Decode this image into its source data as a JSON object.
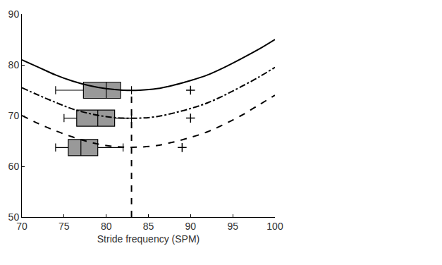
{
  "chart_data": {
    "type": "line",
    "x_label": "Stride frequency (SPM)",
    "x": [
      70,
      72,
      74,
      76,
      78,
      80,
      82,
      84,
      86,
      88,
      90,
      92,
      94,
      96,
      98,
      100
    ],
    "series": [
      {
        "color": "#000000",
        "line_style": "solid",
        "values": [
          81,
          79.5,
          78,
          76.8,
          75.9,
          75.3,
          75,
          75,
          75.3,
          76,
          76.9,
          78,
          79.5,
          81.2,
          83,
          85
        ]
      },
      {
        "color": "#000000",
        "line_style": "dashdot",
        "values": [
          75.5,
          74,
          72.6,
          71.3,
          70.4,
          69.8,
          69.5,
          69.5,
          69.8,
          70.5,
          71.4,
          72.5,
          74,
          75.7,
          77.5,
          79.5
        ]
      },
      {
        "color": "#000000",
        "line_style": "dashed",
        "values": [
          70,
          68.4,
          67,
          65.8,
          64.8,
          64.1,
          63.8,
          63.8,
          64.1,
          64.8,
          65.7,
          66.8,
          68.3,
          70,
          72,
          74
        ]
      }
    ],
    "boxes": [
      {
        "y": 75,
        "whisker_low": 74,
        "q1": 77.3,
        "median": 80,
        "q3": 81.7,
        "whisker_high": 83,
        "outliers": [
          90
        ],
        "color": "#999999"
      },
      {
        "y": 69.5,
        "whisker_low": 75,
        "q1": 76.5,
        "median": 79,
        "q3": 81,
        "whisker_high": 83,
        "outliers": [
          90
        ],
        "color": "#999999"
      },
      {
        "y": 63.7,
        "whisker_low": 74,
        "q1": 75.5,
        "median": 77,
        "q3": 79,
        "whisker_high": 82,
        "outliers": [
          89
        ],
        "color": "#999999"
      }
    ],
    "vline": {
      "x": 83,
      "y": [
        50,
        75
      ],
      "line_style": "dashed",
      "color": "#000000"
    },
    "xlim": [
      70,
      100
    ],
    "xticks": [
      70,
      75,
      80,
      85,
      90,
      95,
      100
    ],
    "ylim": [
      50,
      90
    ],
    "yticks": [
      50,
      60,
      70,
      80,
      90
    ],
    "grid": false
  }
}
